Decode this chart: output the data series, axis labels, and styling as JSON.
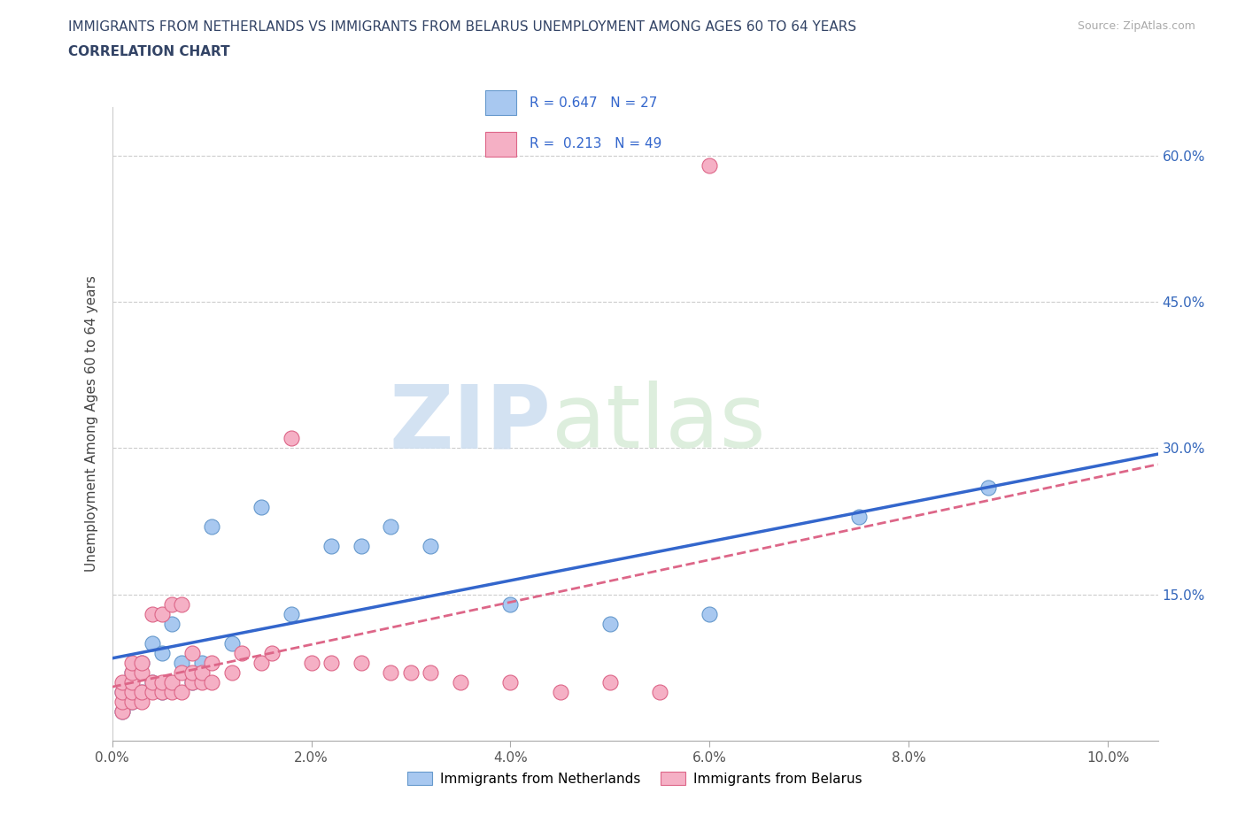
{
  "title_line1": "IMMIGRANTS FROM NETHERLANDS VS IMMIGRANTS FROM BELARUS UNEMPLOYMENT AMONG AGES 60 TO 64 YEARS",
  "title_line2": "CORRELATION CHART",
  "source": "Source: ZipAtlas.com",
  "ylabel": "Unemployment Among Ages 60 to 64 years",
  "xlim": [
    0.0,
    0.105
  ],
  "ylim": [
    0.0,
    0.65
  ],
  "xtick_vals": [
    0.0,
    0.02,
    0.04,
    0.06,
    0.08,
    0.1
  ],
  "xticklabels": [
    "0.0%",
    "2.0%",
    "4.0%",
    "6.0%",
    "8.0%",
    "10.0%"
  ],
  "ytick_vals": [
    0.15,
    0.3,
    0.45,
    0.6
  ],
  "yticklabels_right": [
    "15.0%",
    "30.0%",
    "45.0%",
    "60.0%"
  ],
  "neth_color": "#a8c8f0",
  "neth_edge": "#6699cc",
  "bel_color": "#f5b0c5",
  "bel_edge": "#dd6688",
  "neth_R": "0.647",
  "neth_N": "27",
  "bel_R": "0.213",
  "bel_N": "49",
  "trend_neth_color": "#3366cc",
  "trend_bel_color": "#dd6688",
  "watermark_zip": "ZIP",
  "watermark_atlas": "atlas",
  "legend_label_neth": "Immigrants from Netherlands",
  "legend_label_bel": "Immigrants from Belarus",
  "neth_x": [
    0.001,
    0.001,
    0.002,
    0.002,
    0.003,
    0.003,
    0.004,
    0.004,
    0.005,
    0.005,
    0.006,
    0.007,
    0.008,
    0.009,
    0.01,
    0.012,
    0.015,
    0.018,
    0.022,
    0.025,
    0.028,
    0.032,
    0.04,
    0.05,
    0.06,
    0.075,
    0.088
  ],
  "neth_y": [
    0.03,
    0.05,
    0.04,
    0.07,
    0.05,
    0.08,
    0.06,
    0.1,
    0.05,
    0.09,
    0.12,
    0.08,
    0.06,
    0.08,
    0.22,
    0.1,
    0.24,
    0.13,
    0.2,
    0.2,
    0.22,
    0.2,
    0.14,
    0.12,
    0.13,
    0.23,
    0.26
  ],
  "bel_x": [
    0.001,
    0.001,
    0.001,
    0.001,
    0.002,
    0.002,
    0.002,
    0.002,
    0.002,
    0.003,
    0.003,
    0.003,
    0.003,
    0.004,
    0.004,
    0.004,
    0.005,
    0.005,
    0.005,
    0.006,
    0.006,
    0.006,
    0.007,
    0.007,
    0.007,
    0.008,
    0.008,
    0.008,
    0.009,
    0.009,
    0.01,
    0.01,
    0.012,
    0.013,
    0.015,
    0.016,
    0.018,
    0.02,
    0.022,
    0.025,
    0.028,
    0.03,
    0.032,
    0.035,
    0.04,
    0.045,
    0.05,
    0.055,
    0.06
  ],
  "bel_y": [
    0.03,
    0.04,
    0.05,
    0.06,
    0.04,
    0.05,
    0.06,
    0.07,
    0.08,
    0.04,
    0.05,
    0.07,
    0.08,
    0.05,
    0.06,
    0.13,
    0.05,
    0.06,
    0.13,
    0.05,
    0.06,
    0.14,
    0.05,
    0.07,
    0.14,
    0.06,
    0.07,
    0.09,
    0.06,
    0.07,
    0.06,
    0.08,
    0.07,
    0.09,
    0.08,
    0.09,
    0.31,
    0.08,
    0.08,
    0.08,
    0.07,
    0.07,
    0.07,
    0.06,
    0.06,
    0.05,
    0.06,
    0.05,
    0.59
  ]
}
